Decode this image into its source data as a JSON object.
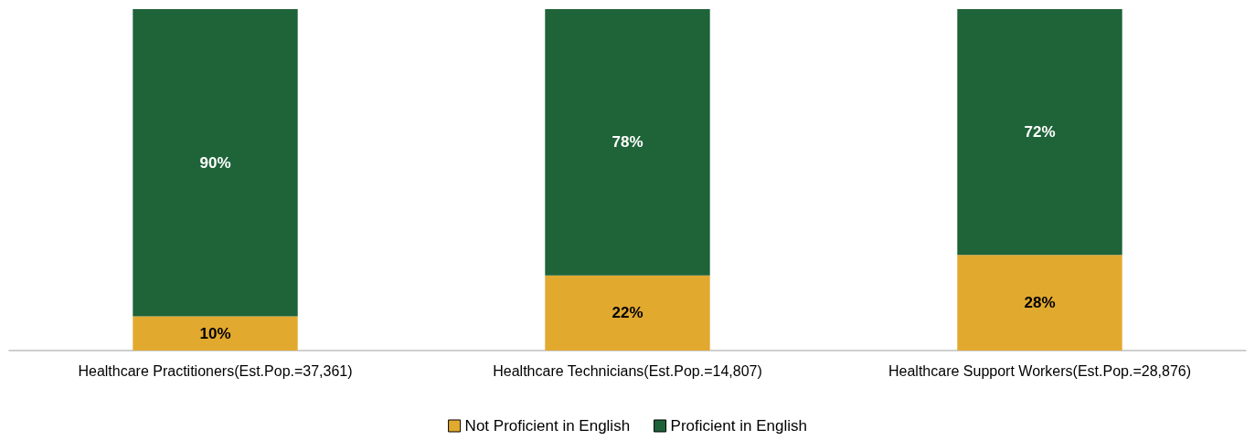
{
  "chart_data": {
    "type": "bar",
    "stacked": true,
    "categories": [
      "Healthcare Practitioners(Est.Pop.=37,361)",
      "Healthcare Technicians(Est.Pop.=14,807)",
      "Healthcare Support Workers(Est.Pop.=28,876)"
    ],
    "series": [
      {
        "name": "Not Proficient in English",
        "color": "#e2a92f",
        "values": [
          10,
          22,
          28
        ],
        "value_labels": [
          "10%",
          "22%",
          "28%"
        ]
      },
      {
        "name": "Proficient in English",
        "color": "#1f6339",
        "values": [
          90,
          78,
          72
        ],
        "value_labels": [
          "90%",
          "78%",
          "72%"
        ]
      }
    ],
    "legend": "bottom"
  }
}
